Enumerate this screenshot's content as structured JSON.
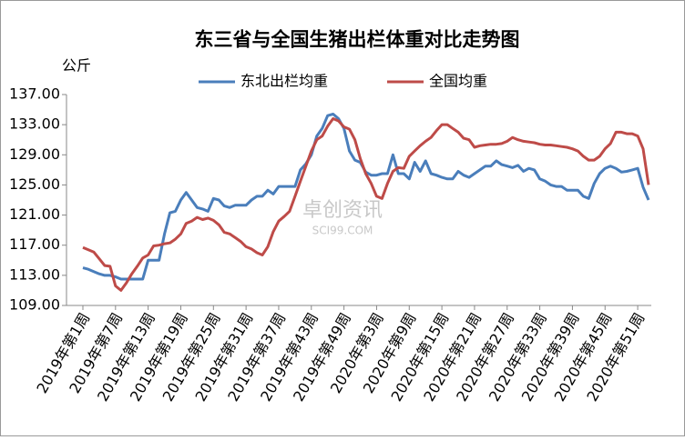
{
  "chart_data": {
    "type": "line",
    "title": "东三省与全国生猪出栏体重对比走势图",
    "y_label": "公斤",
    "watermark": "卓创资讯",
    "watermark_sub": "SCI99.COM",
    "grid": false,
    "legend": "top",
    "categories": [
      "2019年第1周",
      null,
      null,
      null,
      null,
      null,
      "2019年第7周",
      null,
      null,
      null,
      null,
      null,
      "2019年第13周",
      null,
      null,
      null,
      null,
      null,
      "2019年第19周",
      null,
      null,
      null,
      null,
      null,
      "2019年第25周",
      null,
      null,
      null,
      null,
      null,
      "2019年第31周",
      null,
      null,
      null,
      null,
      null,
      "2019年第37周",
      null,
      null,
      null,
      null,
      null,
      "2019年第43周",
      null,
      null,
      null,
      null,
      null,
      "2019年第49周",
      null,
      null,
      null,
      null,
      null,
      "2020年第3周",
      null,
      null,
      null,
      null,
      null,
      "2020年第9周",
      null,
      null,
      null,
      null,
      null,
      "2020年第15周",
      null,
      null,
      null,
      null,
      null,
      "2020年第21周",
      null,
      null,
      null,
      null,
      null,
      "2020年第27周",
      null,
      null,
      null,
      null,
      null,
      "2020年第33周",
      null,
      null,
      null,
      null,
      null,
      "2020年第39周",
      null,
      null,
      null,
      null,
      null,
      "2020年第45周",
      null,
      null,
      null,
      null,
      null,
      "2020年第51周",
      null,
      null
    ],
    "ylim": [
      109,
      137
    ],
    "yticks": [
      {
        "value": 109,
        "label": "109.00"
      },
      {
        "value": 113,
        "label": "113.00"
      },
      {
        "value": 117,
        "label": "117.00"
      },
      {
        "value": 121,
        "label": "121.00"
      },
      {
        "value": 125,
        "label": "125.00"
      },
      {
        "value": 129,
        "label": "129.00"
      },
      {
        "value": 133,
        "label": "133.00"
      },
      {
        "value": 137,
        "label": "137.00"
      }
    ],
    "series": [
      {
        "name": "东北出栏均重",
        "color": "#4a7ebb",
        "values": [
          114,
          113.8,
          113.5,
          113.2,
          113,
          113,
          112.8,
          112.5,
          112.5,
          112.5,
          112.5,
          112.5,
          115,
          115,
          115,
          118.5,
          121.3,
          121.5,
          123,
          124,
          123,
          122,
          121.8,
          121.5,
          123.2,
          123,
          122.2,
          122,
          122.3,
          122.3,
          122.3,
          123,
          123.5,
          123.5,
          124.3,
          123.8,
          124.8,
          124.8,
          124.8,
          124.8,
          127,
          127.8,
          129,
          131.5,
          132.5,
          134.2,
          134.4,
          133.8,
          132.5,
          129.5,
          128.3,
          128,
          126.7,
          126.3,
          126.3,
          126.5,
          126.5,
          129,
          126.5,
          126.5,
          125.8,
          128,
          126.8,
          128.2,
          126.5,
          126.3,
          126,
          125.8,
          125.8,
          126.8,
          126.3,
          126,
          126.5,
          127,
          127.5,
          127.5,
          128.2,
          127.7,
          127.5,
          127.3,
          127.6,
          126.8,
          127.2,
          127,
          125.8,
          125.5,
          125,
          124.8,
          124.8,
          124.3,
          124.3,
          124.3,
          123.5,
          123.2,
          125.2,
          126.5,
          127.2,
          127.5,
          127.2,
          126.7,
          126.8,
          127,
          127.2,
          124.7,
          123
        ]
      },
      {
        "name": "全国均重",
        "color": "#be4b48",
        "values": [
          116.7,
          116.4,
          116.1,
          115.2,
          114.3,
          114.2,
          111.6,
          111,
          112,
          113.2,
          114.2,
          115.3,
          115.7,
          116.9,
          117,
          117.2,
          117.3,
          117.8,
          118.5,
          119.9,
          120.2,
          120.7,
          120.4,
          120.6,
          120.3,
          119.7,
          118.7,
          118.5,
          118,
          117.5,
          116.8,
          116.5,
          116,
          115.7,
          116.8,
          118.8,
          120.2,
          120.8,
          121.5,
          123.5,
          125.5,
          127.5,
          129.5,
          131,
          131.5,
          132.8,
          133.8,
          133.5,
          132.7,
          132.4,
          131,
          128.5,
          126.5,
          125.2,
          123.5,
          123.2,
          125.2,
          126.8,
          127.3,
          127.2,
          128.8,
          129.5,
          130.2,
          130.8,
          131.3,
          132.2,
          133,
          133,
          132.5,
          132,
          131.2,
          131,
          130,
          130.2,
          130.3,
          130.4,
          130.4,
          130.5,
          130.8,
          131.3,
          131,
          130.8,
          130.7,
          130.6,
          130.4,
          130.3,
          130.3,
          130.2,
          130.1,
          130,
          129.8,
          129.5,
          128.8,
          128.3,
          128.3,
          128.8,
          129.8,
          130.5,
          132,
          132,
          131.8,
          131.8,
          131.5,
          129.8,
          125
        ]
      }
    ]
  }
}
